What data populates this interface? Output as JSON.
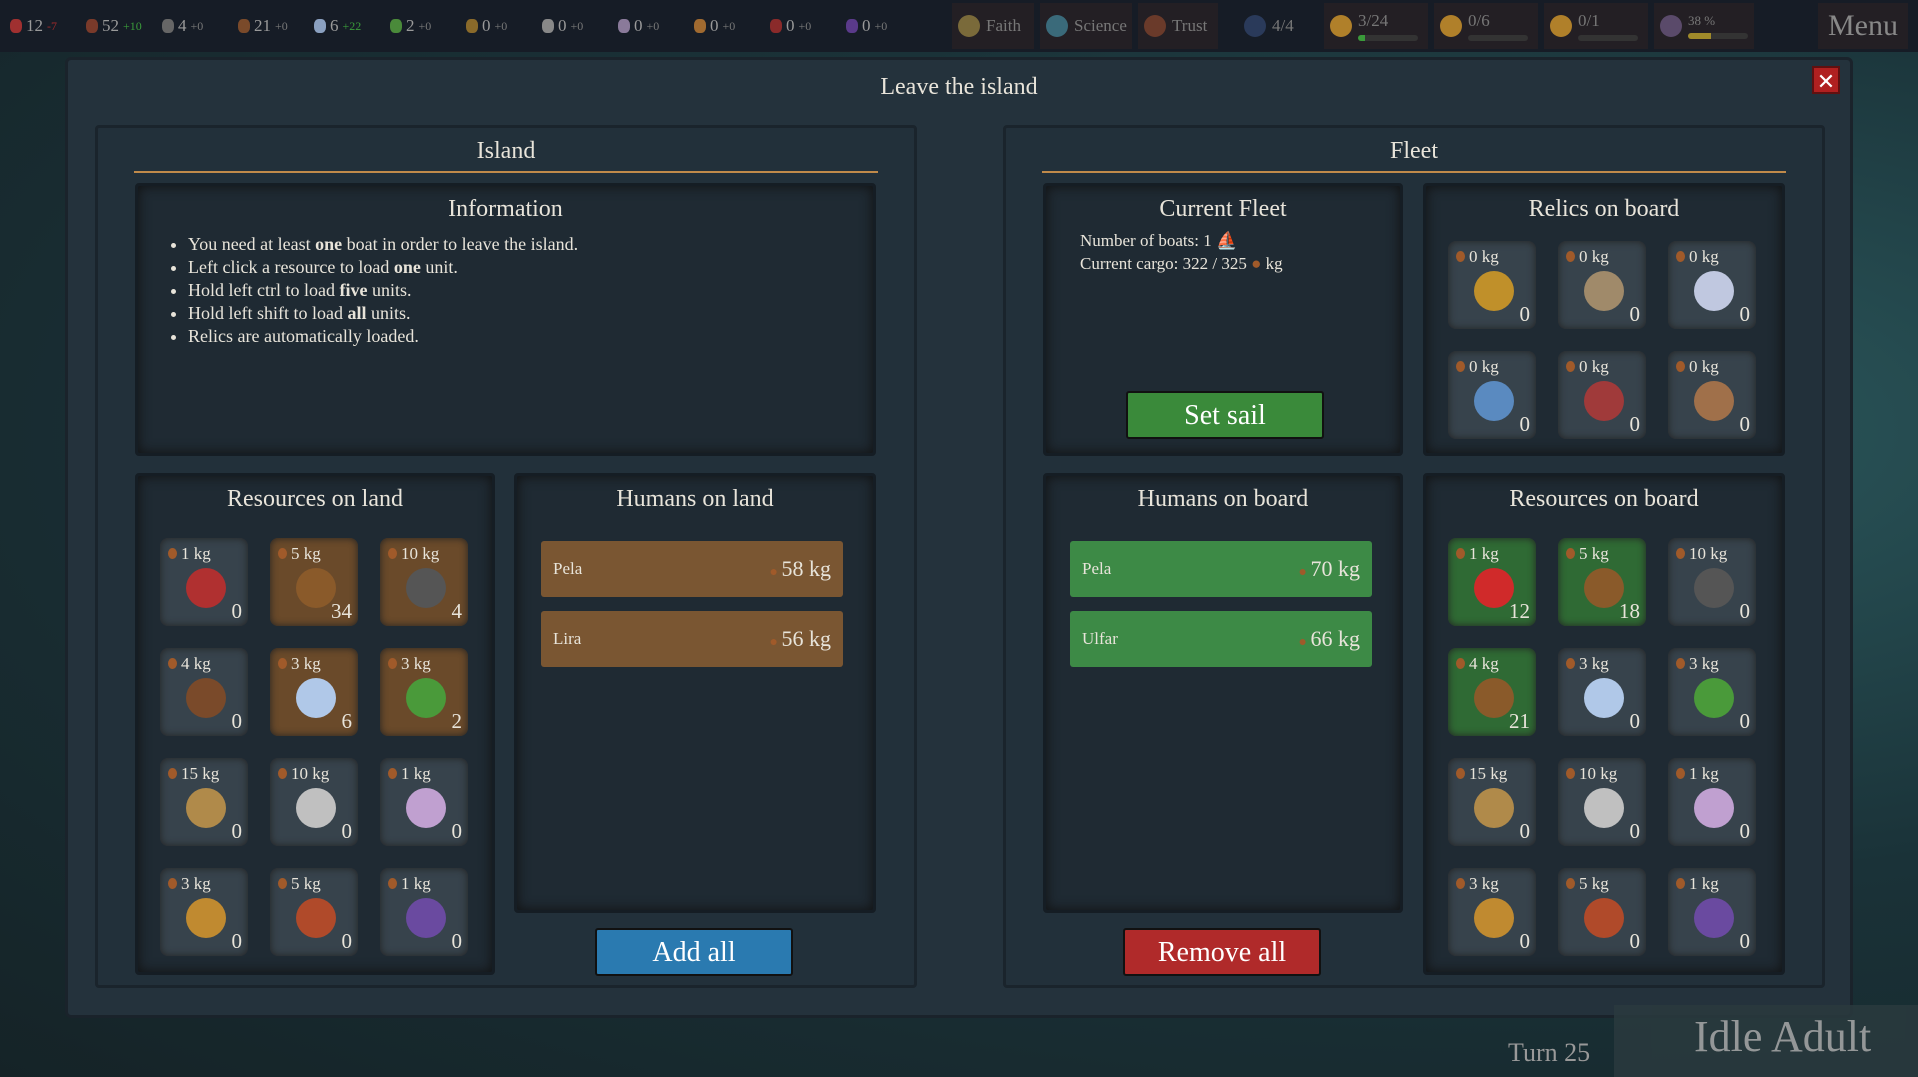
{
  "topbar": {
    "resources": [
      {
        "icon": "apple-icon",
        "color": "#a03030",
        "value": "12",
        "delta": "-7",
        "sign": "neg"
      },
      {
        "icon": "wood-icon",
        "color": "#7a3a2a",
        "value": "52",
        "delta": "+10",
        "sign": "pos"
      },
      {
        "icon": "stone-icon",
        "color": "#666",
        "value": "4",
        "delta": "+0",
        "sign": ""
      },
      {
        "icon": "leather-icon",
        "color": "#7a4a2a",
        "value": "21",
        "delta": "+0",
        "sign": ""
      },
      {
        "icon": "flower-icon",
        "color": "#8aa0c0",
        "value": "6",
        "delta": "+22",
        "sign": "pos"
      },
      {
        "icon": "herb-icon",
        "color": "#4a8a3a",
        "value": "2",
        "delta": "+0",
        "sign": ""
      },
      {
        "icon": "gold-icon",
        "color": "#8a6a2a",
        "value": "0",
        "delta": "+0",
        "sign": ""
      },
      {
        "icon": "silver-icon",
        "color": "#888",
        "value": "0",
        "delta": "+0",
        "sign": ""
      },
      {
        "icon": "pearl-icon",
        "color": "#8a7a9a",
        "value": "0",
        "delta": "+0",
        "sign": ""
      },
      {
        "icon": "gems-icon",
        "color": "#a06a30",
        "value": "0",
        "delta": "+0",
        "sign": ""
      },
      {
        "icon": "feather-icon",
        "color": "#8a2a2a",
        "value": "0",
        "delta": "+0",
        "sign": ""
      },
      {
        "icon": "mushroom-icon",
        "color": "#5a3a8a",
        "value": "0",
        "delta": "+0",
        "sign": ""
      }
    ],
    "faith": "Faith",
    "science": "Science",
    "trust": "Trust",
    "population": "4/4",
    "stars": [
      {
        "value": "3/24",
        "progress": 0.12,
        "color": "#3a9a3a"
      },
      {
        "value": "0/6",
        "progress": 0,
        "color": "#3a9a3a"
      },
      {
        "value": "0/1",
        "progress": 0,
        "color": "#3a9a3a"
      }
    ],
    "percent": "38 %",
    "percent_value": 38,
    "menu": "Menu"
  },
  "modal": {
    "title": "Leave the island",
    "island": {
      "header": "Island",
      "info": {
        "title": "Information",
        "items": [
          [
            "You need at least ",
            "one",
            " boat in order to leave the island."
          ],
          [
            "Left click a resource to load ",
            "one",
            " unit."
          ],
          [
            "Hold left ctrl to load ",
            "five",
            " units."
          ],
          [
            "Hold left shift to load ",
            "all",
            " units."
          ],
          [
            "Relics are automatically loaded.",
            "",
            ""
          ]
        ]
      },
      "resources": {
        "title": "Resources on land",
        "items": [
          {
            "kg": "1 kg",
            "count": "0",
            "color": "#b03030",
            "name": "apple",
            "active": false
          },
          {
            "kg": "5 kg",
            "count": "34",
            "color": "#8a5a2a",
            "name": "wood",
            "active": true
          },
          {
            "kg": "10 kg",
            "count": "4",
            "color": "#555",
            "name": "stone",
            "active": true
          },
          {
            "kg": "4 kg",
            "count": "0",
            "color": "#7a4a2a",
            "name": "leather",
            "active": false
          },
          {
            "kg": "3 kg",
            "count": "6",
            "color": "#b0c8e8",
            "name": "flower",
            "active": true
          },
          {
            "kg": "3 kg",
            "count": "2",
            "color": "#4a9a3a",
            "name": "herb",
            "active": true
          },
          {
            "kg": "15 kg",
            "count": "0",
            "color": "#b08a4a",
            "name": "gold-ore",
            "active": false
          },
          {
            "kg": "10 kg",
            "count": "0",
            "color": "#c0c0c0",
            "name": "silver-ore",
            "active": false
          },
          {
            "kg": "1 kg",
            "count": "0",
            "color": "#c0a0d0",
            "name": "pearl",
            "active": false
          },
          {
            "kg": "3 kg",
            "count": "0",
            "color": "#c08a30",
            "name": "gems",
            "active": false
          },
          {
            "kg": "5 kg",
            "count": "0",
            "color": "#b04a2a",
            "name": "feather",
            "active": false
          },
          {
            "kg": "1 kg",
            "count": "0",
            "color": "#6a4aa0",
            "name": "mushroom",
            "active": false
          }
        ]
      },
      "humans": {
        "title": "Humans on land",
        "items": [
          {
            "name": "Pela",
            "kg": "58 kg"
          },
          {
            "name": "Lira",
            "kg": "56 kg"
          }
        ]
      },
      "add_all": "Add all"
    },
    "fleet": {
      "header": "Fleet",
      "current": {
        "title": "Current Fleet",
        "boats": "Number of boats: 1",
        "cargo": "Current cargo: 322 / 325",
        "cargo_unit": "kg",
        "set_sail": "Set sail"
      },
      "relics": {
        "title": "Relics on board",
        "items": [
          {
            "kg": "0 kg",
            "count": "0",
            "color": "#c0902a"
          },
          {
            "kg": "0 kg",
            "count": "0",
            "color": "#a08a6a"
          },
          {
            "kg": "0 kg",
            "count": "0",
            "color": "#c0c8e0"
          },
          {
            "kg": "0 kg",
            "count": "0",
            "color": "#5a8ac0"
          },
          {
            "kg": "0 kg",
            "count": "0",
            "color": "#a03a3a"
          },
          {
            "kg": "0 kg",
            "count": "0",
            "color": "#a0704a"
          }
        ]
      },
      "humans": {
        "title": "Humans on board",
        "items": [
          {
            "name": "Pela",
            "kg": "70 kg"
          },
          {
            "name": "Ulfar",
            "kg": "66 kg"
          }
        ]
      },
      "resources": {
        "title": "Resources on board",
        "items": [
          {
            "kg": "1 kg",
            "count": "12",
            "color": "#d02a2a",
            "active": true
          },
          {
            "kg": "5 kg",
            "count": "18",
            "color": "#8a5a2a",
            "active": true
          },
          {
            "kg": "10 kg",
            "count": "0",
            "color": "#555",
            "active": false
          },
          {
            "kg": "4 kg",
            "count": "21",
            "color": "#8a5a2a",
            "active": true
          },
          {
            "kg": "3 kg",
            "count": "0",
            "color": "#b0c8e8",
            "active": false
          },
          {
            "kg": "3 kg",
            "count": "0",
            "color": "#4a9a3a",
            "active": false
          },
          {
            "kg": "15 kg",
            "count": "0",
            "color": "#b08a4a",
            "active": false
          },
          {
            "kg": "10 kg",
            "count": "0",
            "color": "#c0c0c0",
            "active": false
          },
          {
            "kg": "1 kg",
            "count": "0",
            "color": "#c0a0d0",
            "active": false
          },
          {
            "kg": "3 kg",
            "count": "0",
            "color": "#c08a30",
            "active": false
          },
          {
            "kg": "5 kg",
            "count": "0",
            "color": "#b04a2a",
            "active": false
          },
          {
            "kg": "1 kg",
            "count": "0",
            "color": "#6a4aa0",
            "active": false
          }
        ]
      },
      "remove_all": "Remove all"
    }
  },
  "footer": {
    "turn": "Turn 25",
    "brand": "Idle Adult"
  }
}
